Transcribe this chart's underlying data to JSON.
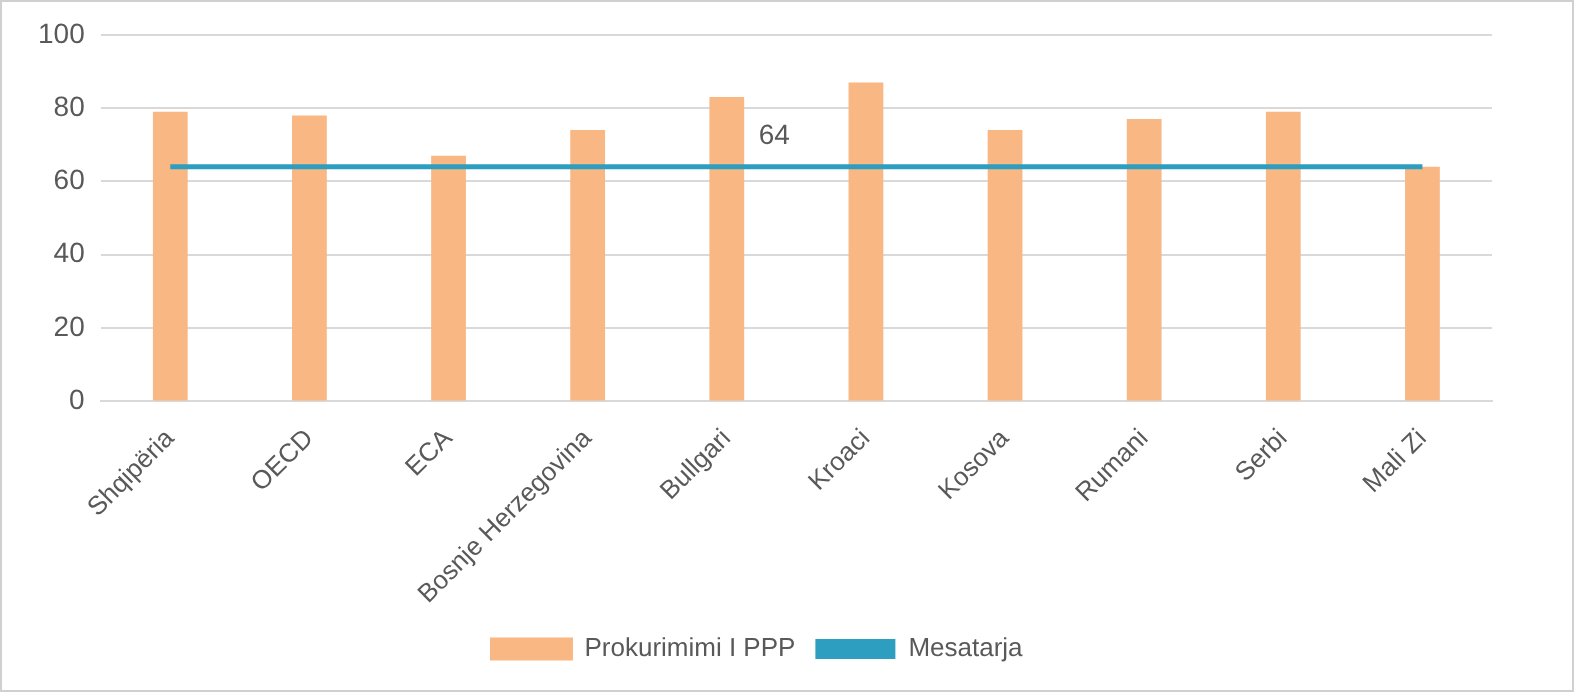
{
  "chart_data": {
    "type": "bar",
    "categories": [
      "Shqipëria",
      "OECD",
      "ECA",
      "Bosnje Herzegovina",
      "Bullgari",
      "Kroaci",
      "Kosova",
      "Rumani",
      "Serbi",
      "Mali Zi"
    ],
    "series": [
      {
        "name": "Prokurimimi I PPP",
        "color": "#f9b784",
        "values": [
          79,
          78,
          67,
          74,
          83,
          87,
          74,
          77,
          79,
          64
        ]
      },
      {
        "name": "Mesatarja",
        "type": "line",
        "color": "#2e9ec0",
        "values": [
          64,
          64,
          64,
          64,
          64,
          64,
          64,
          64,
          64,
          64
        ],
        "value_labels": [
          null,
          null,
          null,
          null,
          "64",
          null,
          null,
          null,
          null,
          null
        ]
      }
    ],
    "ylim": [
      0,
      100
    ],
    "yticks": [
      0,
      20,
      40,
      60,
      80,
      100
    ],
    "grid": "y",
    "legend": "bottom",
    "marker": "none"
  }
}
